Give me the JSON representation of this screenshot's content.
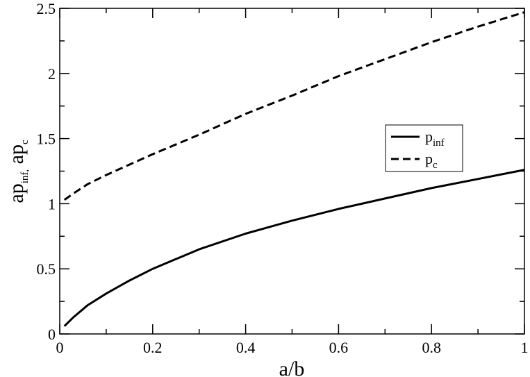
{
  "chart_data": {
    "type": "line",
    "xlabel": "a/b",
    "ylabel": {
      "parts": [
        {
          "text": "ap",
          "sub": "inf,"
        },
        {
          "text": " ap",
          "sub": "c"
        }
      ]
    },
    "xlim": [
      0,
      1
    ],
    "ylim": [
      0,
      2.5
    ],
    "xticks": [
      0,
      0.2,
      0.4,
      0.6,
      0.8,
      1
    ],
    "xtick_labels": [
      "0",
      "0.2",
      "0.4",
      "0.6",
      "0.8",
      "1"
    ],
    "yticks": [
      0,
      0.5,
      1,
      1.5,
      2,
      2.5
    ],
    "ytick_labels": [
      "0",
      "0.5",
      "1",
      "1.5",
      "2",
      "2.5"
    ],
    "grid": false,
    "legend": "center-right",
    "series": [
      {
        "name": "p",
        "name_sub": "inf",
        "style": "solid",
        "color": "#000000",
        "x": [
          0.01,
          0.03,
          0.06,
          0.1,
          0.15,
          0.2,
          0.3,
          0.4,
          0.5,
          0.6,
          0.7,
          0.8,
          0.9,
          1.0
        ],
        "y": [
          0.06,
          0.13,
          0.22,
          0.31,
          0.41,
          0.5,
          0.65,
          0.77,
          0.87,
          0.96,
          1.04,
          1.12,
          1.19,
          1.26
        ]
      },
      {
        "name": "p",
        "name_sub": "c",
        "style": "dashed",
        "color": "#000000",
        "x": [
          0.01,
          0.03,
          0.06,
          0.1,
          0.15,
          0.2,
          0.3,
          0.4,
          0.5,
          0.6,
          0.7,
          0.8,
          0.9,
          1.0
        ],
        "y": [
          1.03,
          1.08,
          1.15,
          1.22,
          1.3,
          1.38,
          1.53,
          1.69,
          1.83,
          1.98,
          2.11,
          2.24,
          2.36,
          2.47
        ]
      }
    ]
  }
}
